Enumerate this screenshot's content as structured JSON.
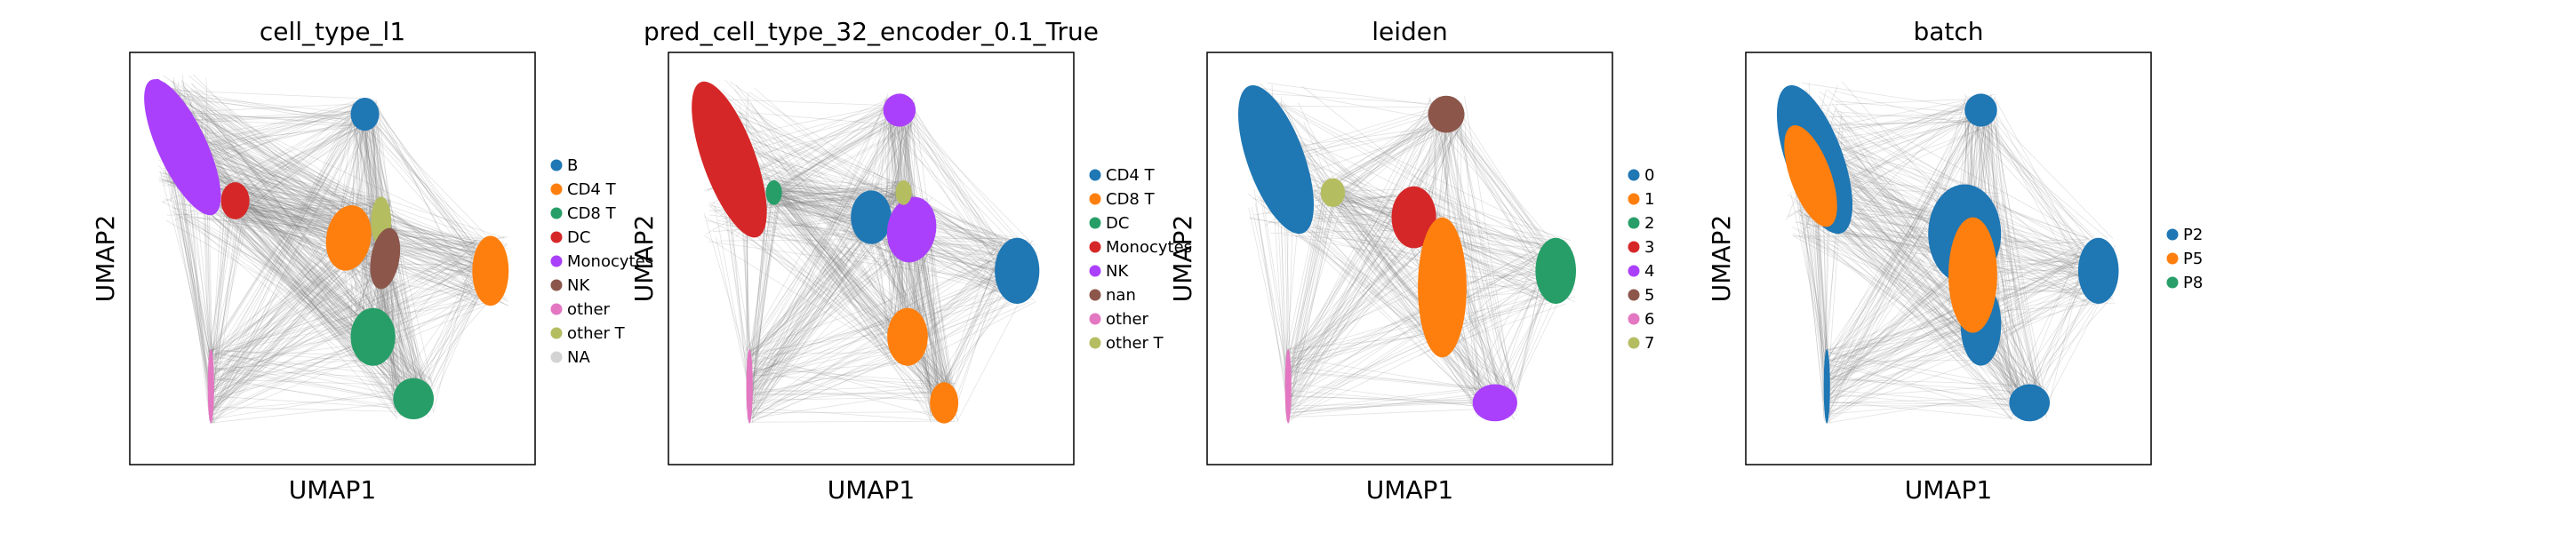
{
  "figure": {
    "xlabel": "UMAP1",
    "ylabel": "UMAP2"
  },
  "chart_data": [
    {
      "type": "scatter",
      "title": "cell_type_l1",
      "xlabel": "UMAP1",
      "ylabel": "UMAP2",
      "grid": false,
      "legend_position": "right",
      "series": [
        {
          "name": "B",
          "color": "#1f77b4"
        },
        {
          "name": "CD4 T",
          "color": "#ff7f0e"
        },
        {
          "name": "CD8 T",
          "color": "#279e68"
        },
        {
          "name": "DC",
          "color": "#d62728"
        },
        {
          "name": "Monocytes",
          "color": "#aa40fc"
        },
        {
          "name": "NK",
          "color": "#8c564b"
        },
        {
          "name": "other",
          "color": "#e377c2"
        },
        {
          "name": "other T",
          "color": "#b5bd61"
        },
        {
          "name": "NA",
          "color": "#d3d3d3"
        }
      ],
      "clusters": [
        {
          "x": 1.3,
          "y": 7.7,
          "rx": 0.6,
          "ry": 1.8,
          "rot": -25,
          "color": "#aa40fc"
        },
        {
          "x": 1.0,
          "y": 8.1,
          "rx": 0.3,
          "ry": 1.3,
          "rot": -15,
          "color": "#aa40fc"
        },
        {
          "x": 2.6,
          "y": 6.4,
          "rx": 0.35,
          "ry": 0.45,
          "rot": 0,
          "color": "#d62728"
        },
        {
          "x": 5.8,
          "y": 8.5,
          "rx": 0.35,
          "ry": 0.4,
          "rot": 0,
          "color": "#1f77b4"
        },
        {
          "x": 5.4,
          "y": 5.5,
          "rx": 0.55,
          "ry": 0.8,
          "rot": 10,
          "color": "#ff7f0e"
        },
        {
          "x": 6.2,
          "y": 5.9,
          "rx": 0.25,
          "ry": 0.6,
          "rot": 0,
          "color": "#b5bd61"
        },
        {
          "x": 6.3,
          "y": 5.0,
          "rx": 0.35,
          "ry": 0.75,
          "rot": 10,
          "color": "#8c564b"
        },
        {
          "x": 8.9,
          "y": 4.7,
          "rx": 0.45,
          "ry": 0.85,
          "rot": 0,
          "color": "#ff7f0e"
        },
        {
          "x": 6.0,
          "y": 3.1,
          "rx": 0.55,
          "ry": 0.7,
          "rot": 0,
          "color": "#279e68"
        },
        {
          "x": 7.0,
          "y": 1.6,
          "rx": 0.5,
          "ry": 0.5,
          "rot": 0,
          "color": "#279e68"
        },
        {
          "x": 2.0,
          "y": 1.9,
          "rx": 0.08,
          "ry": 0.9,
          "rot": 0,
          "color": "#e377c2"
        }
      ]
    },
    {
      "type": "scatter",
      "title": "pred_cell_type_32_encoder_0.1_True",
      "xlabel": "UMAP1",
      "ylabel": "UMAP2",
      "grid": false,
      "legend_position": "right",
      "series": [
        {
          "name": "CD4 T",
          "color": "#1f77b4"
        },
        {
          "name": "CD8 T",
          "color": "#ff7f0e"
        },
        {
          "name": "DC",
          "color": "#279e68"
        },
        {
          "name": "Monocytes",
          "color": "#d62728"
        },
        {
          "name": "NK",
          "color": "#aa40fc"
        },
        {
          "name": "nan",
          "color": "#8c564b"
        },
        {
          "name": "other",
          "color": "#e377c2"
        },
        {
          "name": "other T",
          "color": "#b5bd61"
        }
      ],
      "clusters": [
        {
          "x": 1.5,
          "y": 7.4,
          "rx": 0.65,
          "ry": 2.0,
          "rot": -20,
          "color": "#d62728"
        },
        {
          "x": 2.6,
          "y": 6.6,
          "rx": 0.2,
          "ry": 0.3,
          "rot": 0,
          "color": "#279e68"
        },
        {
          "x": 5.7,
          "y": 8.6,
          "rx": 0.4,
          "ry": 0.4,
          "rot": 0,
          "color": "#aa40fc"
        },
        {
          "x": 5.0,
          "y": 6.0,
          "rx": 0.5,
          "ry": 0.65,
          "rot": 0,
          "color": "#1f77b4"
        },
        {
          "x": 6.0,
          "y": 5.7,
          "rx": 0.6,
          "ry": 0.8,
          "rot": 10,
          "color": "#aa40fc"
        },
        {
          "x": 5.8,
          "y": 6.6,
          "rx": 0.2,
          "ry": 0.3,
          "rot": 0,
          "color": "#b5bd61"
        },
        {
          "x": 8.6,
          "y": 4.7,
          "rx": 0.55,
          "ry": 0.8,
          "rot": 0,
          "color": "#1f77b4"
        },
        {
          "x": 5.9,
          "y": 3.1,
          "rx": 0.5,
          "ry": 0.7,
          "rot": 0,
          "color": "#ff7f0e"
        },
        {
          "x": 6.8,
          "y": 1.5,
          "rx": 0.35,
          "ry": 0.5,
          "rot": 0,
          "color": "#ff7f0e"
        },
        {
          "x": 2.0,
          "y": 1.9,
          "rx": 0.08,
          "ry": 0.9,
          "rot": 0,
          "color": "#e377c2"
        }
      ]
    },
    {
      "type": "scatter",
      "title": "leiden",
      "xlabel": "UMAP1",
      "ylabel": "UMAP2",
      "grid": false,
      "legend_position": "right",
      "series": [
        {
          "name": "0",
          "color": "#1f77b4"
        },
        {
          "name": "1",
          "color": "#ff7f0e"
        },
        {
          "name": "2",
          "color": "#279e68"
        },
        {
          "name": "3",
          "color": "#d62728"
        },
        {
          "name": "4",
          "color": "#aa40fc"
        },
        {
          "name": "5",
          "color": "#8c564b"
        },
        {
          "name": "6",
          "color": "#e377c2"
        },
        {
          "name": "7",
          "color": "#b5bd61"
        }
      ],
      "clusters": [
        {
          "x": 1.7,
          "y": 7.4,
          "rx": 0.7,
          "ry": 1.9,
          "rot": -20,
          "color": "#1f77b4"
        },
        {
          "x": 3.1,
          "y": 6.6,
          "rx": 0.3,
          "ry": 0.35,
          "rot": 0,
          "color": "#b5bd61"
        },
        {
          "x": 5.9,
          "y": 8.5,
          "rx": 0.45,
          "ry": 0.45,
          "rot": 0,
          "color": "#8c564b"
        },
        {
          "x": 5.1,
          "y": 6.0,
          "rx": 0.55,
          "ry": 0.75,
          "rot": 0,
          "color": "#d62728"
        },
        {
          "x": 5.8,
          "y": 4.3,
          "rx": 0.6,
          "ry": 1.7,
          "rot": 0,
          "color": "#ff7f0e"
        },
        {
          "x": 8.6,
          "y": 4.7,
          "rx": 0.5,
          "ry": 0.8,
          "rot": 0,
          "color": "#279e68"
        },
        {
          "x": 7.1,
          "y": 1.5,
          "rx": 0.55,
          "ry": 0.45,
          "rot": 0,
          "color": "#aa40fc"
        },
        {
          "x": 2.0,
          "y": 1.9,
          "rx": 0.08,
          "ry": 0.9,
          "rot": 0,
          "color": "#e377c2"
        }
      ]
    },
    {
      "type": "scatter",
      "title": "batch",
      "xlabel": "UMAP1",
      "ylabel": "UMAP2",
      "grid": false,
      "legend_position": "right",
      "series": [
        {
          "name": "P2",
          "color": "#1f77b4"
        },
        {
          "name": "P5",
          "color": "#ff7f0e"
        },
        {
          "name": "P8",
          "color": "#279e68"
        }
      ],
      "clusters": [
        {
          "x": 1.7,
          "y": 7.4,
          "rx": 0.7,
          "ry": 1.9,
          "rot": -20,
          "color": "#1f77b4"
        },
        {
          "x": 5.8,
          "y": 8.6,
          "rx": 0.4,
          "ry": 0.4,
          "rot": 0,
          "color": "#1f77b4"
        },
        {
          "x": 5.4,
          "y": 5.6,
          "rx": 0.9,
          "ry": 1.2,
          "rot": 0,
          "color": "#1f77b4"
        },
        {
          "x": 8.7,
          "y": 4.7,
          "rx": 0.5,
          "ry": 0.8,
          "rot": 0,
          "color": "#1f77b4"
        },
        {
          "x": 5.8,
          "y": 3.4,
          "rx": 0.5,
          "ry": 1.0,
          "rot": 0,
          "color": "#1f77b4"
        },
        {
          "x": 7.0,
          "y": 1.5,
          "rx": 0.5,
          "ry": 0.45,
          "rot": 0,
          "color": "#1f77b4"
        },
        {
          "x": 2.0,
          "y": 1.9,
          "rx": 0.08,
          "ry": 0.9,
          "rot": 0,
          "color": "#1f77b4"
        },
        {
          "x": 1.6,
          "y": 7.0,
          "rx": 0.5,
          "ry": 1.3,
          "rot": -20,
          "color": "#ff7f0e"
        },
        {
          "x": 5.6,
          "y": 4.6,
          "rx": 0.6,
          "ry": 1.4,
          "rot": 0,
          "color": "#ff7f0e"
        }
      ]
    }
  ]
}
